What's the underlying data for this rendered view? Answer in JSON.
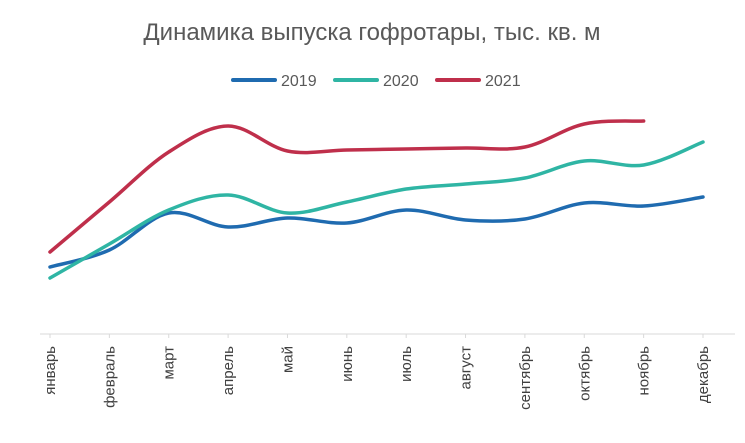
{
  "chart_data": {
    "type": "line",
    "title": "Динамика выпуска гофротары, тыс. кв. м",
    "xlabel": "",
    "ylabel": "",
    "categories": [
      "январь",
      "февраль",
      "март",
      "апрель",
      "май",
      "июнь",
      "июль",
      "август",
      "сентябрь",
      "октябрь",
      "ноябрь",
      "декабрь"
    ],
    "ylim": [
      0,
      100
    ],
    "grid": false,
    "legend_position": "top",
    "series": [
      {
        "name": "2019",
        "color": "#1f6bb0",
        "values": [
          25.5,
          34,
          52.5,
          45.5,
          50,
          47.5,
          54,
          49,
          49.5,
          57.5,
          56,
          60.5
        ]
      },
      {
        "name": "2020",
        "color": "#2fb5a4",
        "values": [
          20,
          37,
          54,
          61.5,
          52.5,
          58,
          64.5,
          67,
          70,
          78.5,
          76.5,
          88
        ]
      },
      {
        "name": "2021",
        "color": "#bf2f4b",
        "values": [
          33,
          58,
          83,
          96,
          83.5,
          84,
          84.5,
          85,
          85.5,
          97,
          98.5,
          null
        ]
      }
    ]
  }
}
